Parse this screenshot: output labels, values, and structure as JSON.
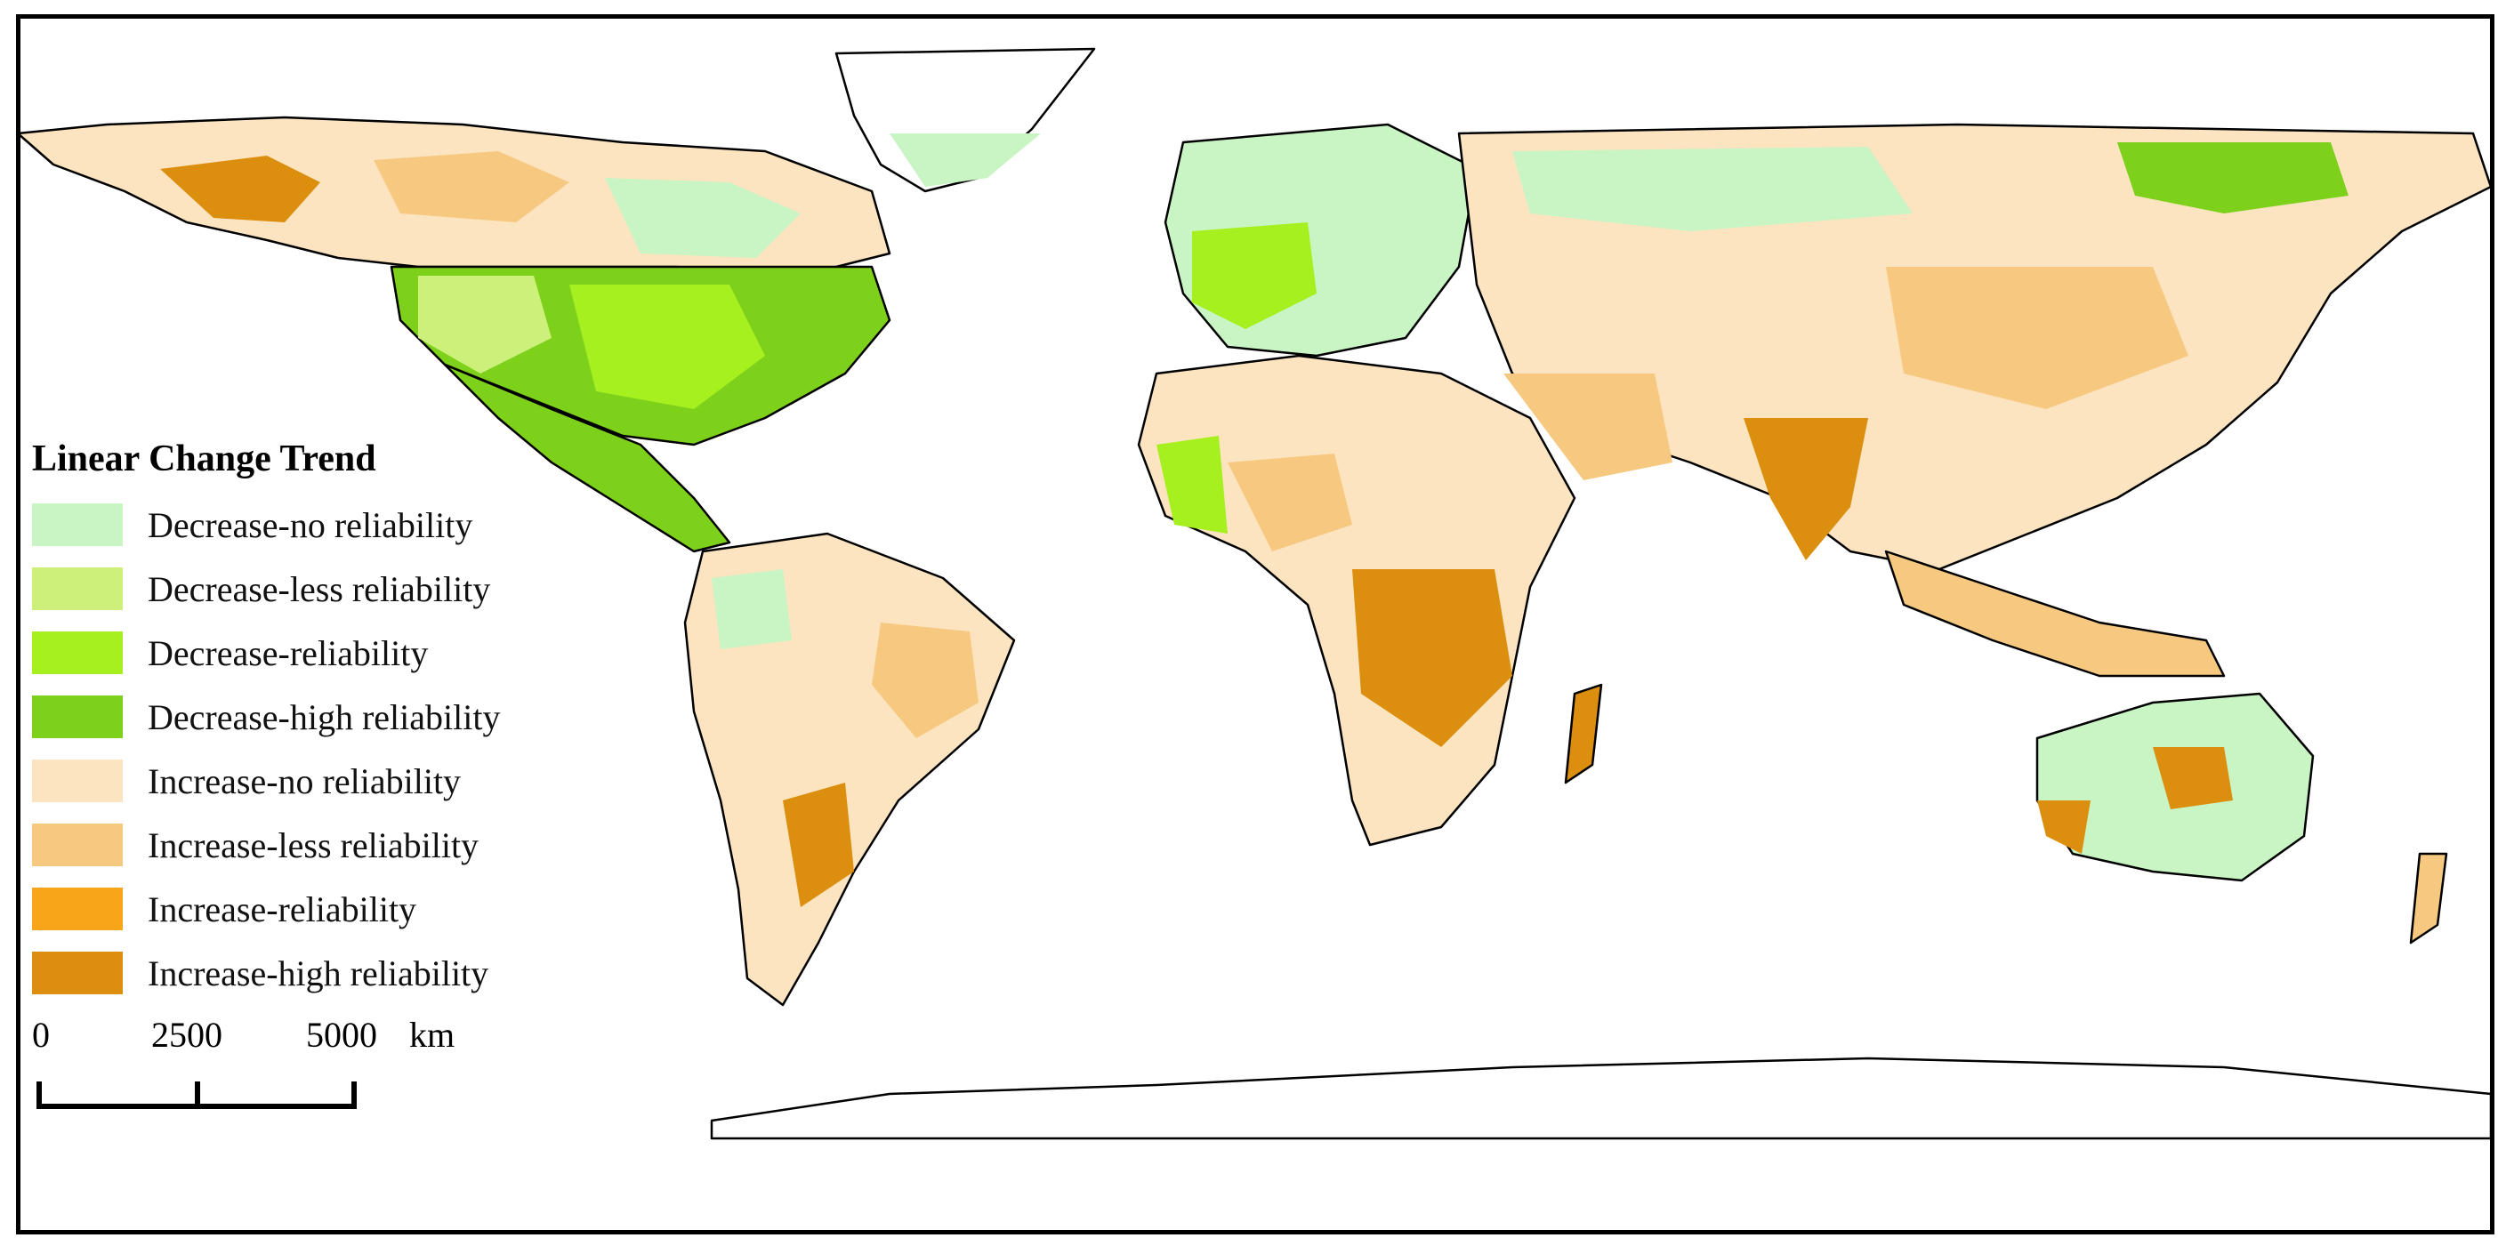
{
  "legend": {
    "title": "Linear Change Trend",
    "items": [
      {
        "label": "Decrease-no reliability",
        "color": "#c8f5c3"
      },
      {
        "label": "Decrease-less reliability",
        "color": "#cdf07a"
      },
      {
        "label": "Decrease-reliability",
        "color": "#a6f020"
      },
      {
        "label": "Decrease-high reliability",
        "color": "#7ed11a"
      },
      {
        "label": "Increase-no reliability",
        "color": "#fbe4bf"
      },
      {
        "label": "Increase-less reliability",
        "color": "#f7c980"
      },
      {
        "label": "Increase-reliability",
        "color": "#f8a51a"
      },
      {
        "label": "Increase-high reliability",
        "color": "#dc8e0e"
      }
    ]
  },
  "scale_bar": {
    "labels": [
      "0",
      "2500",
      "5000"
    ],
    "unit": "km"
  }
}
